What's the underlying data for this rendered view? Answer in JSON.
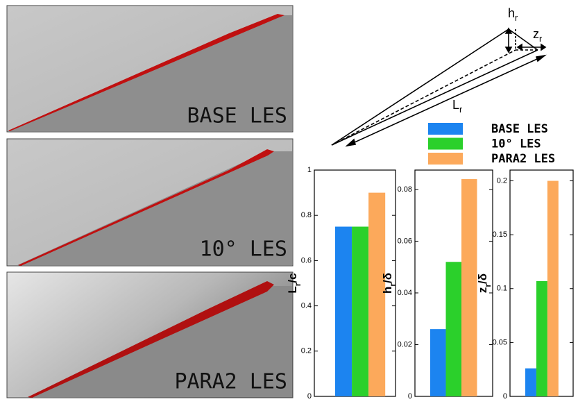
{
  "panels": [
    {
      "label": "BASE LES"
    },
    {
      "label": "10° LES"
    },
    {
      "label": "PARA2 LES"
    }
  ],
  "diagram": {
    "height": {
      "main": "h",
      "sub": "r"
    },
    "width": {
      "main": "z",
      "sub": "r"
    },
    "length": {
      "main": "L",
      "sub": "r"
    }
  },
  "legend": [
    {
      "name": "BASE LES",
      "color": "#1c84f0"
    },
    {
      "name": "10° LES",
      "color": "#2bd02b"
    },
    {
      "name": "PARA2 LES",
      "color": "#fca95b"
    }
  ],
  "chart_data": [
    {
      "type": "bar",
      "ylabel": {
        "main": "L",
        "sub": "r",
        "rest": "/c"
      },
      "values": [
        0.75,
        0.75,
        0.9
      ],
      "ylim": [
        0,
        1
      ],
      "yticks": [
        0,
        0.2,
        0.4,
        0.6,
        0.8,
        1
      ]
    },
    {
      "type": "bar",
      "ylabel": {
        "main": "h",
        "sub": "r",
        "rest": "/δ"
      },
      "values": [
        0.026,
        0.052,
        0.084
      ],
      "ylim": [
        0,
        0.0875
      ],
      "yticks": [
        0,
        0.02,
        0.04,
        0.06,
        0.08
      ]
    },
    {
      "type": "bar",
      "ylabel": {
        "main": "z",
        "sub": "r",
        "rest": "/δ"
      },
      "values": [
        0.026,
        0.107,
        0.2
      ],
      "ylim": [
        0,
        0.21
      ],
      "yticks": [
        0,
        0.05,
        0.1,
        0.15,
        0.2
      ]
    }
  ]
}
